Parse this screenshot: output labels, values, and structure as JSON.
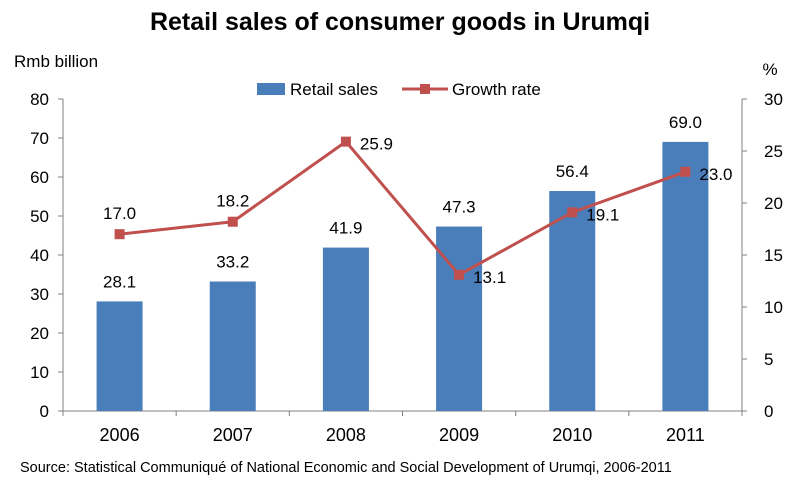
{
  "chart_data": {
    "type": "bar",
    "title": "Retail sales of consumer goods in Urumqi",
    "categories": [
      "2006",
      "2007",
      "2008",
      "2009",
      "2010",
      "2011"
    ],
    "series": [
      {
        "name": "Retail sales",
        "type": "bar",
        "axis": "left",
        "values": [
          28.1,
          33.2,
          41.9,
          47.3,
          56.4,
          69.0
        ],
        "labels": [
          "28.1",
          "33.2",
          "41.9",
          "47.3",
          "56.4",
          "69.0"
        ],
        "color": "#4a7ebb"
      },
      {
        "name": "Growth rate",
        "type": "line",
        "axis": "right",
        "values": [
          17.0,
          18.2,
          25.9,
          13.1,
          19.1,
          23.0
        ],
        "labels": [
          "17.0",
          "18.2",
          "25.9",
          "13.1",
          "19.1",
          "23.0"
        ],
        "color": "#c0504d"
      }
    ],
    "y_left": {
      "unit": "Rmb billion",
      "ylim": [
        0,
        80
      ],
      "ticks": [
        "0",
        "10",
        "20",
        "30",
        "40",
        "50",
        "60",
        "70",
        "80"
      ]
    },
    "y_right": {
      "unit": "%",
      "ylim": [
        0,
        30
      ],
      "ticks": [
        "0",
        "5",
        "10",
        "15",
        "20",
        "25",
        "30"
      ]
    },
    "legend_position": "top",
    "grid": false
  },
  "source": "Source: Statistical Communiqué  of National Economic and Social Development of Urumqi,  2006-2011"
}
